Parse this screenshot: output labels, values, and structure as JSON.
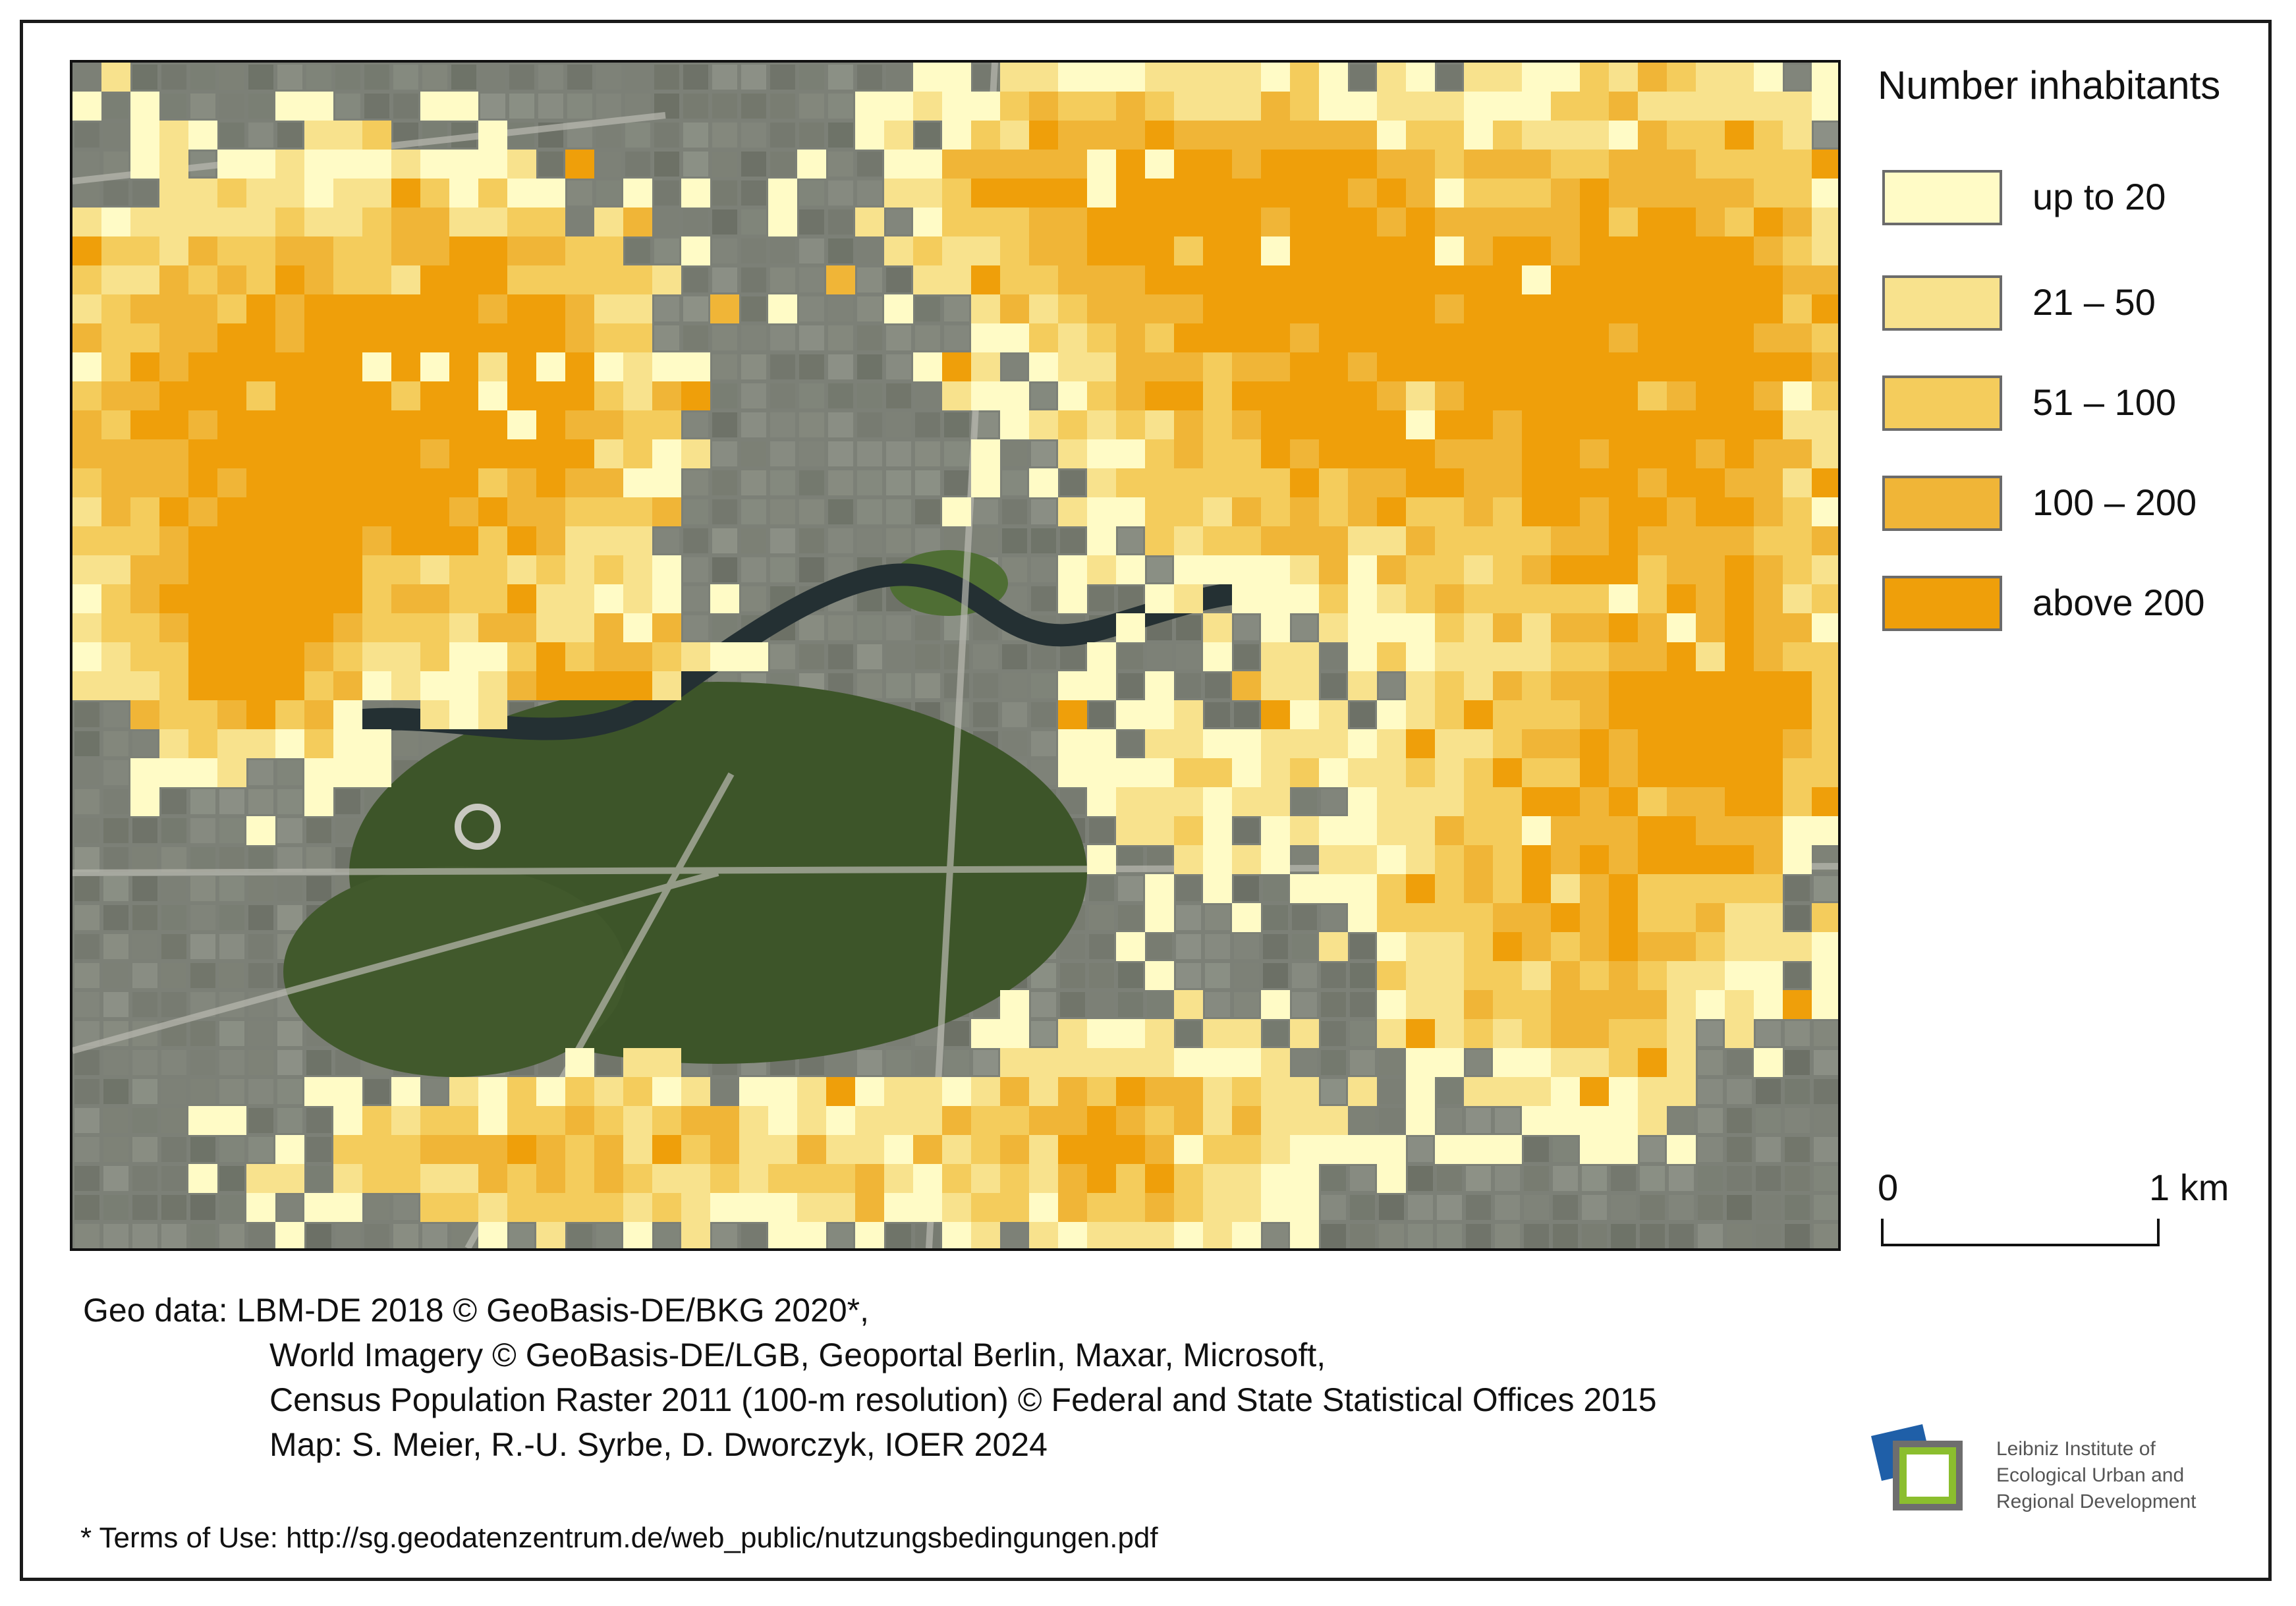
{
  "legend": {
    "title": "Number inhabitants",
    "classes": [
      {
        "label": "up to 20",
        "color": "#FFFBC6"
      },
      {
        "label": "21 – 50",
        "color": "#F8E28D"
      },
      {
        "label": "51 – 100",
        "color": "#F4CC5C"
      },
      {
        "label": "100 – 200",
        "color": "#F0B537"
      },
      {
        "label": "above 200",
        "color": "#EF9F0A"
      }
    ]
  },
  "scalebar": {
    "start_label": "0",
    "end_label": "1 km"
  },
  "credits": {
    "line1": "Geo data: LBM-DE 2018 © GeoBasis-DE/BKG 2020*,",
    "line2": "World Imagery © GeoBasis-DE/LGB, Geoportal Berlin, Maxar, Microsoft,",
    "line3": "Census Population Raster 2011 (100-m resolution) © Federal and State Statistical Offices 2015",
    "line4": "Map: S. Meier, R.-U. Syrbe, D. Dworczyk, IOER 2024"
  },
  "terms": "* Terms of Use: http://sg.geodatenzentrum.de/web_public/nutzungsbedingungen.pdf",
  "logo": {
    "line1": "Leibniz Institute of",
    "line2": "Ecological Urban and",
    "line3": "Regional Development",
    "colors": {
      "blue": "#1F5FA8",
      "green": "#8BBE2E",
      "gray": "#6E6E6E"
    }
  },
  "basemap": {
    "type": "satellite imagery",
    "park_color": "#3E5A2A",
    "river_color": "#2A3A3E",
    "urban_color": "#7C8077"
  }
}
